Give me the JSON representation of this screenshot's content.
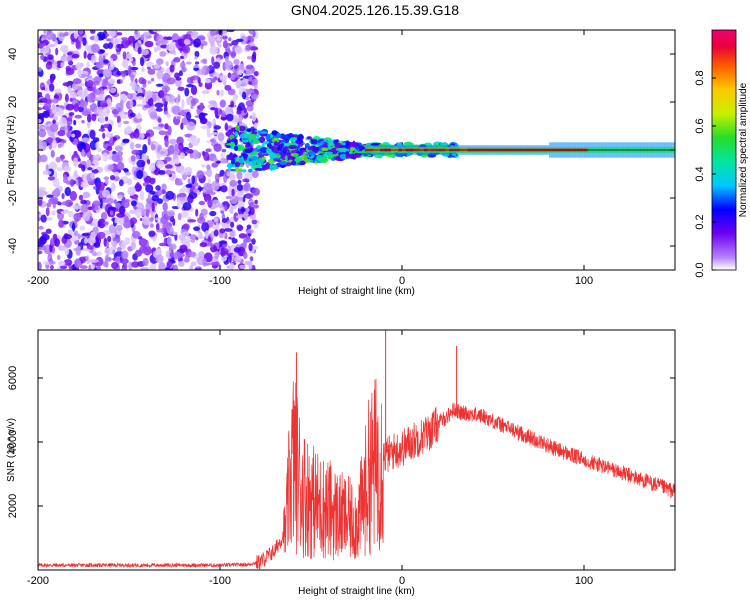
{
  "title": "GN04.2025.126.15.39.G18",
  "chart_data": [
    {
      "type": "heatmap",
      "xlabel": "Height of straight line (km)",
      "ylabel": "Frequency (Hz)",
      "xlim": [
        -200,
        150
      ],
      "ylim": [
        -50,
        50
      ],
      "xticks": [
        -200,
        -100,
        0,
        100
      ],
      "yticks": [
        -40,
        -20,
        0,
        20,
        40
      ],
      "colorbar": {
        "label": "Normalized spectral amplitude",
        "range": [
          0,
          1
        ],
        "ticks": [
          0.0,
          0.2,
          0.4,
          0.6,
          0.8
        ]
      },
      "features": {
        "noise_region_x": [
          -200,
          -80
        ],
        "converging_region_x": [
          -95,
          -20
        ],
        "tone_line_frequency": 0
      }
    },
    {
      "type": "line",
      "xlabel": "Height of straight line (km)",
      "ylabel": "SNR (10 * v/v)",
      "xlim": [
        -200,
        150
      ],
      "ylim": [
        0,
        7500
      ],
      "xticks": [
        -200,
        -100,
        0,
        100
      ],
      "yticks": [
        2000,
        4000,
        6000
      ],
      "series": [
        {
          "color": "#ee3333",
          "x": [
            -200,
            -150,
            -100,
            -85,
            -78,
            -70,
            -64,
            -62,
            -60,
            -57,
            -55,
            -50,
            -45,
            -40,
            -35,
            -30,
            -25,
            -22,
            -20,
            -18,
            -15,
            -13,
            -11,
            -10,
            -8,
            -5,
            0,
            5,
            10,
            15,
            20,
            25,
            28,
            30,
            32,
            35,
            40,
            45,
            50,
            60,
            70,
            80,
            90,
            100,
            110,
            120,
            130,
            140,
            150
          ],
          "y": [
            150,
            150,
            150,
            170,
            250,
            600,
            1200,
            2500,
            3500,
            3000,
            2500,
            2200,
            2000,
            1900,
            1700,
            1600,
            1500,
            2000,
            2500,
            3000,
            3300,
            3400,
            3500,
            3550,
            3600,
            3700,
            3800,
            4000,
            4150,
            4300,
            4600,
            4800,
            5000,
            5000,
            4900,
            4900,
            4850,
            4800,
            4650,
            4400,
            4150,
            3900,
            3650,
            3450,
            3250,
            3050,
            2850,
            2650,
            2450
          ]
        }
      ],
      "annotations": [
        {
          "x": -58,
          "y": 6800,
          "note": "spike"
        },
        {
          "x": -9,
          "y": 7500,
          "note": "spike"
        },
        {
          "x": 30,
          "y": 7000,
          "note": "spike"
        }
      ]
    }
  ]
}
